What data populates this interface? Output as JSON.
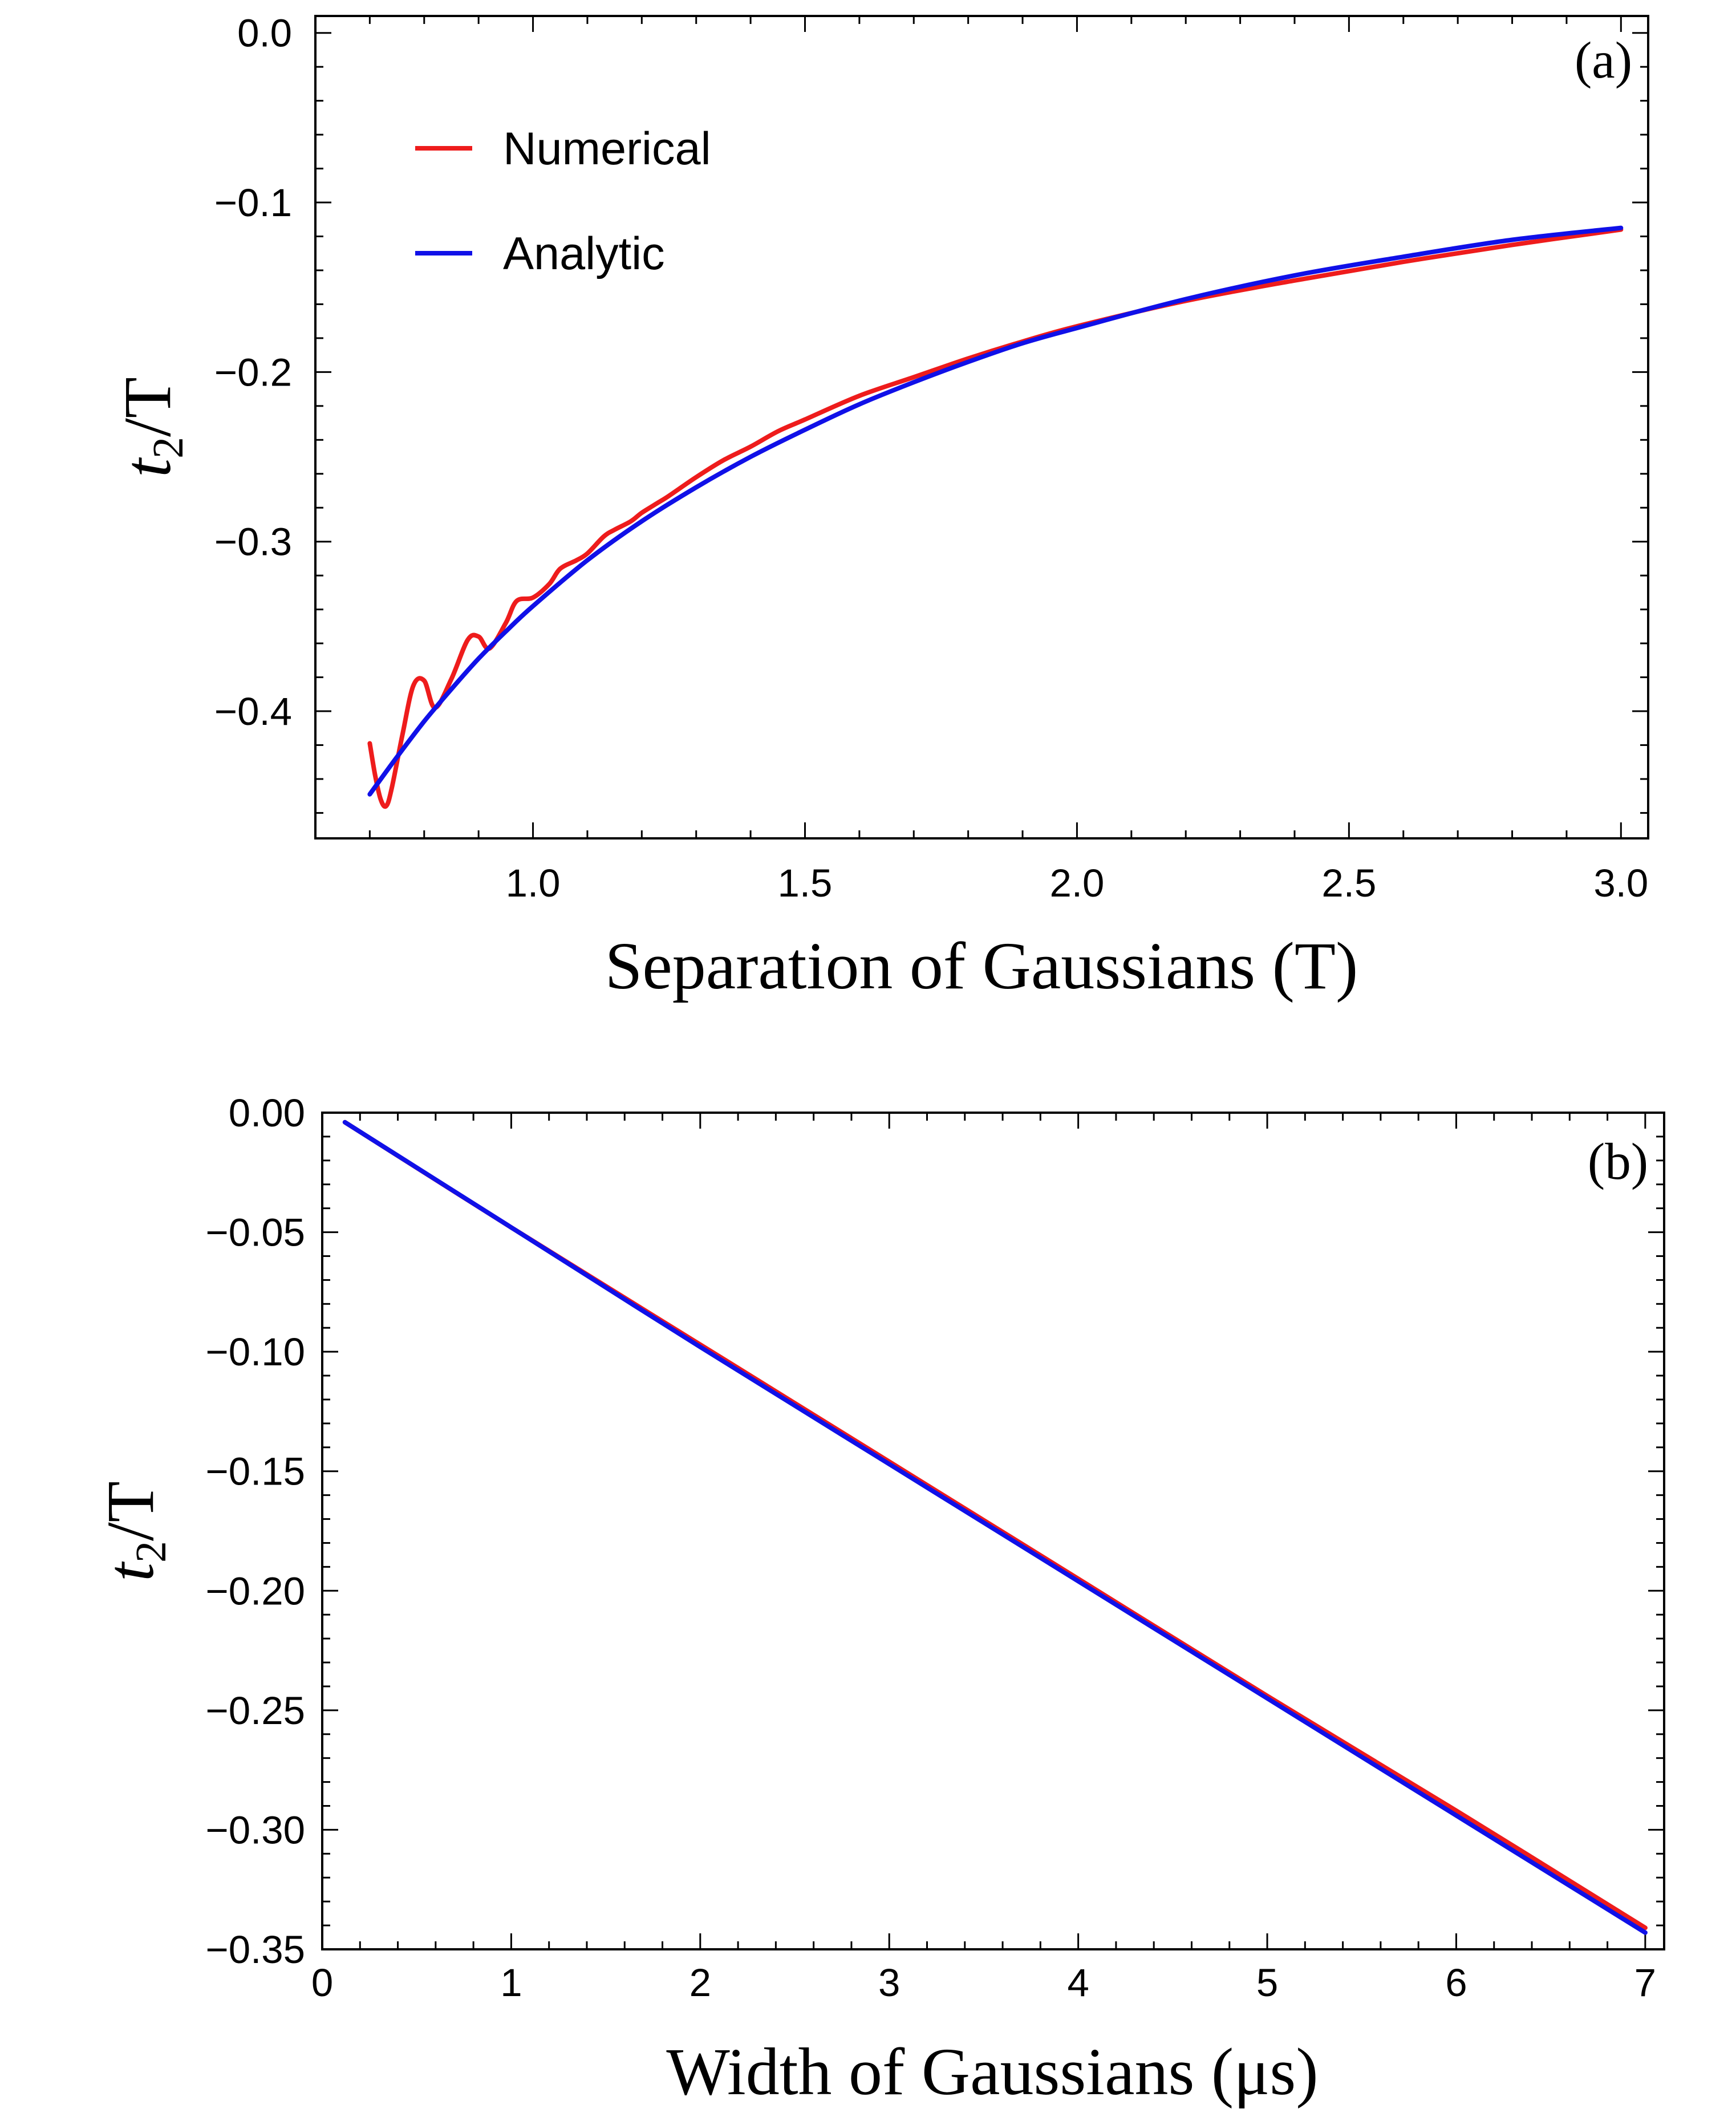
{
  "chart_data": [
    {
      "type": "line",
      "panel_label": "(a)",
      "xlabel": "Separation of Gaussians (T)",
      "ylabel_main": "t",
      "ylabel_sub": "2",
      "ylabel_rest": "/T",
      "xlim": [
        0.6,
        3.05
      ],
      "ylim": [
        -0.475,
        0.01
      ],
      "xticks": [
        "1.0",
        "1.5",
        "2.0",
        "2.5",
        "3.0"
      ],
      "xtick_values": [
        1.0,
        1.5,
        2.0,
        2.5,
        3.0
      ],
      "yticks": [
        "0.0",
        "−0.1",
        "−0.2",
        "−0.3",
        "−0.4"
      ],
      "ytick_values": [
        0.0,
        -0.1,
        -0.2,
        -0.3,
        -0.4
      ],
      "legend_position": "top-left",
      "grid": false,
      "series": [
        {
          "name": "Numerical",
          "color": "#ee1c1c",
          "x": [
            0.7,
            0.71,
            0.72,
            0.73,
            0.74,
            0.76,
            0.78,
            0.8,
            0.82,
            0.85,
            0.88,
            0.9,
            0.92,
            0.95,
            0.97,
            1.0,
            1.03,
            1.05,
            1.08,
            1.1,
            1.13,
            1.15,
            1.18,
            1.2,
            1.23,
            1.25,
            1.3,
            1.35,
            1.4,
            1.45,
            1.5,
            1.6,
            1.7,
            1.8,
            1.9,
            2.0,
            2.2,
            2.4,
            2.6,
            2.8,
            3.0
          ],
          "y": [
            -0.419,
            -0.438,
            -0.452,
            -0.456,
            -0.446,
            -0.414,
            -0.385,
            -0.382,
            -0.398,
            -0.381,
            -0.358,
            -0.356,
            -0.363,
            -0.348,
            -0.335,
            -0.333,
            -0.325,
            -0.316,
            -0.311,
            -0.307,
            -0.297,
            -0.293,
            -0.288,
            -0.283,
            -0.277,
            -0.273,
            -0.262,
            -0.252,
            -0.244,
            -0.235,
            -0.228,
            -0.214,
            -0.203,
            -0.192,
            -0.182,
            -0.173,
            -0.158,
            -0.146,
            -0.135,
            -0.125,
            -0.116
          ]
        },
        {
          "name": "Analytic",
          "color": "#1010e8",
          "x": [
            0.7,
            0.75,
            0.8,
            0.85,
            0.9,
            0.95,
            1.0,
            1.1,
            1.2,
            1.3,
            1.4,
            1.5,
            1.6,
            1.7,
            1.8,
            1.9,
            2.0,
            2.2,
            2.4,
            2.6,
            2.8,
            3.0
          ],
          "y": [
            -0.449,
            -0.427,
            -0.406,
            -0.387,
            -0.369,
            -0.353,
            -0.338,
            -0.311,
            -0.288,
            -0.268,
            -0.25,
            -0.234,
            -0.219,
            -0.206,
            -0.194,
            -0.183,
            -0.174,
            -0.157,
            -0.143,
            -0.132,
            -0.122,
            -0.115
          ]
        }
      ]
    },
    {
      "type": "line",
      "panel_label": "(b)",
      "xlabel": "Width of Gaussians (μs)",
      "ylabel_main": "t",
      "ylabel_sub": "2",
      "ylabel_rest": "/T",
      "xlim": [
        0,
        7.1
      ],
      "ylim": [
        -0.35,
        0.0
      ],
      "xticks": [
        "0",
        "1",
        "2",
        "3",
        "4",
        "5",
        "6",
        "7"
      ],
      "xtick_values": [
        0,
        1,
        2,
        3,
        4,
        5,
        6,
        7
      ],
      "yticks": [
        "0.00",
        "−0.05",
        "−0.10",
        "−0.15",
        "−0.20",
        "−0.25",
        "−0.30",
        "−0.35"
      ],
      "ytick_values": [
        0.0,
        -0.05,
        -0.1,
        -0.15,
        -0.2,
        -0.25,
        -0.3,
        -0.35
      ],
      "grid": false,
      "series": [
        {
          "name": "Numerical",
          "color": "#ee1c1c",
          "x": [
            0.12,
            1,
            2,
            3,
            4,
            5,
            6,
            7
          ],
          "y": [
            -0.004,
            -0.048,
            -0.097,
            -0.146,
            -0.195,
            -0.244,
            -0.292,
            -0.341
          ]
        },
        {
          "name": "Analytic",
          "color": "#1010e8",
          "x": [
            0.12,
            1,
            2,
            3,
            4,
            5,
            6,
            7
          ],
          "y": [
            -0.004,
            -0.048,
            -0.098,
            -0.147,
            -0.196,
            -0.245,
            -0.294,
            -0.343
          ]
        }
      ]
    }
  ]
}
